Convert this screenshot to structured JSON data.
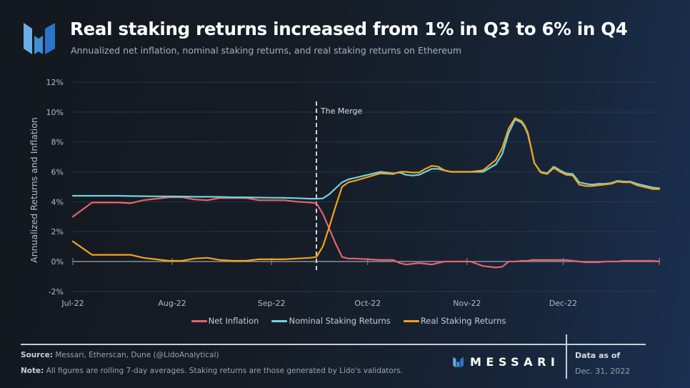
{
  "header": {
    "title": "Real staking returns increased from 1% in Q3 to 6% in Q4",
    "subtitle": "Annualized net inflation, nominal staking returns, and real staking returns on Ethereum",
    "logo_icon": "messari-logo-icon"
  },
  "colors": {
    "net_inflation": "#e8636a",
    "nominal": "#6fd3e0",
    "real": "#f5a219",
    "grid": "#3a4452",
    "zero_axis": "#8a929c",
    "merge_line": "#d0d4da",
    "logo_light": "#6aaee6",
    "logo_mid": "#3f8fd6",
    "logo_dark": "#2b74c7"
  },
  "chart_data": {
    "type": "line",
    "title": "Real staking returns increased from 1% in Q3 to 6% in Q4",
    "subtitle": "Annualized net inflation, nominal staking returns, and real staking returns on Ethereum",
    "xlabel": "",
    "ylabel": "Annualized Returns and Inflation",
    "ylim": [
      -2,
      12
    ],
    "y_ticks": [
      -2,
      0,
      2,
      4,
      6,
      8,
      10,
      12
    ],
    "y_tick_labels": [
      "-2%",
      "0%",
      "2%",
      "4%",
      "6%",
      "8%",
      "10%",
      "12%"
    ],
    "x_unit": "days since 2022-07-01",
    "xlim": [
      0,
      183
    ],
    "x_ticks": [
      0,
      31,
      62,
      92,
      123,
      153
    ],
    "x_tick_labels": [
      "Jul-22",
      "Aug-22",
      "Sep-22",
      "Oct-22",
      "Nov-22",
      "Dec-22"
    ],
    "grid": true,
    "legend_position": "bottom",
    "annotations": [
      {
        "type": "vline",
        "x": 76,
        "label": "The Merge",
        "style": "dashed"
      }
    ],
    "x": [
      0,
      6,
      10,
      14,
      18,
      22,
      26,
      30,
      34,
      38,
      42,
      46,
      50,
      54,
      58,
      62,
      66,
      70,
      74,
      76,
      78,
      80,
      82,
      84,
      86,
      88,
      92,
      96,
      100,
      102,
      104,
      106,
      108,
      110,
      112,
      114,
      116,
      118,
      120,
      124,
      128,
      132,
      134,
      136,
      138,
      140,
      141,
      142,
      143,
      144,
      146,
      148,
      150,
      151,
      152,
      154,
      156,
      158,
      160,
      162,
      164,
      166,
      168,
      170,
      172,
      174,
      176,
      178,
      180,
      181,
      183
    ],
    "series": [
      {
        "name": "Net Inflation",
        "values": [
          3.0,
          3.95,
          3.95,
          3.95,
          3.9,
          4.1,
          4.2,
          4.3,
          4.3,
          4.15,
          4.1,
          4.25,
          4.25,
          4.25,
          4.1,
          4.1,
          4.1,
          4.0,
          3.95,
          3.9,
          3.2,
          2.2,
          1.2,
          0.3,
          0.2,
          0.2,
          0.15,
          0.1,
          0.1,
          -0.1,
          -0.2,
          -0.15,
          -0.1,
          -0.15,
          -0.2,
          -0.1,
          0.0,
          0.0,
          0.0,
          0.0,
          -0.3,
          -0.4,
          -0.35,
          0.0,
          0.0,
          0.05,
          0.05,
          0.05,
          0.1,
          0.1,
          0.1,
          0.1,
          0.1,
          0.1,
          0.1,
          0.1,
          0.05,
          0.0,
          -0.05,
          -0.05,
          -0.05,
          0.0,
          0.0,
          0.0,
          0.05,
          0.05,
          0.05,
          0.05,
          0.05,
          0.05,
          0.0
        ]
      },
      {
        "name": "Nominal Staking Returns",
        "values": [
          4.4,
          4.4,
          4.4,
          4.4,
          4.38,
          4.37,
          4.36,
          4.36,
          4.35,
          4.33,
          4.33,
          4.32,
          4.3,
          4.3,
          4.28,
          4.27,
          4.26,
          4.24,
          4.2,
          4.2,
          4.22,
          4.5,
          4.9,
          5.3,
          5.5,
          5.6,
          5.8,
          6.0,
          5.9,
          5.95,
          5.8,
          5.75,
          5.8,
          6.0,
          6.2,
          6.2,
          6.1,
          6.0,
          6.0,
          6.0,
          6.0,
          6.5,
          7.2,
          8.6,
          9.5,
          9.3,
          9.0,
          8.5,
          7.6,
          6.6,
          6.0,
          5.9,
          6.35,
          6.25,
          6.1,
          5.9,
          5.85,
          5.3,
          5.2,
          5.15,
          5.2,
          5.2,
          5.25,
          5.4,
          5.35,
          5.35,
          5.2,
          5.1,
          5.0,
          4.95,
          4.9
        ]
      },
      {
        "name": "Real Staking Returns",
        "values": [
          1.35,
          0.45,
          0.45,
          0.45,
          0.45,
          0.25,
          0.15,
          0.05,
          0.05,
          0.2,
          0.25,
          0.1,
          0.05,
          0.05,
          0.15,
          0.15,
          0.15,
          0.2,
          0.25,
          0.3,
          1.0,
          2.3,
          3.7,
          5.0,
          5.3,
          5.4,
          5.65,
          5.9,
          5.85,
          6.0,
          6.0,
          5.95,
          5.95,
          6.2,
          6.4,
          6.35,
          6.1,
          6.0,
          6.0,
          6.0,
          6.1,
          6.8,
          7.6,
          8.9,
          9.6,
          9.4,
          9.1,
          8.6,
          7.6,
          6.6,
          5.95,
          5.85,
          6.25,
          6.15,
          6.0,
          5.8,
          5.75,
          5.15,
          5.05,
          5.05,
          5.1,
          5.15,
          5.2,
          5.35,
          5.3,
          5.3,
          5.1,
          5.0,
          4.9,
          4.85,
          4.85
        ]
      }
    ]
  },
  "legend": [
    {
      "label": "Net Inflation",
      "color": "#e8636a"
    },
    {
      "label": "Nominal Staking Returns",
      "color": "#6fd3e0"
    },
    {
      "label": "Real Staking Returns",
      "color": "#f5a219"
    }
  ],
  "footer": {
    "source_label": "Source:",
    "source_text": " Messari, Etherscan, Dune (@LidoAnalytical)",
    "note_label": "Note:",
    "note_text": " All figures are rolling 7-day averages. Staking returns are those generated by Lido's validators.",
    "brand": "MESSARI",
    "data_as_of_label": "Data as of",
    "data_as_of_date": "Dec. 31, 2022"
  }
}
